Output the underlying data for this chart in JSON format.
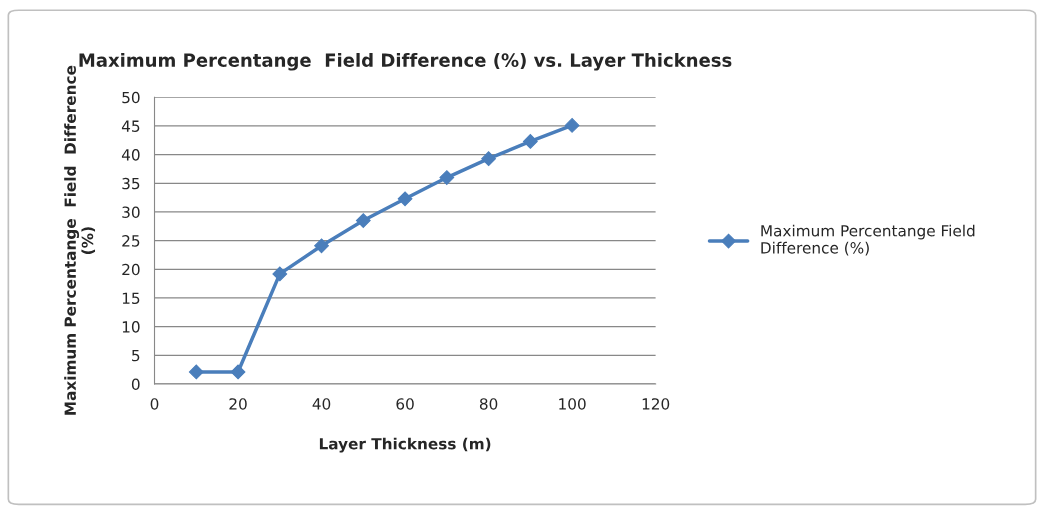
{
  "chart_data": {
    "type": "line",
    "title": "Maximum Percentange  Field Difference (%) vs. Layer Thickness",
    "xlabel": "Layer Thickness (m)",
    "ylabel": "Maximum Percentange  Field  Difference (%)",
    "x": [
      10,
      20,
      30,
      40,
      50,
      60,
      70,
      80,
      90,
      100
    ],
    "series": [
      {
        "name": "Maximum Percentange Field Difference (%)",
        "color": "#4a7ebb",
        "values": [
          2.1,
          2.1,
          19.2,
          24.1,
          28.5,
          32.3,
          36,
          39.3,
          42.3,
          45.1
        ]
      }
    ],
    "xlim": [
      0,
      120
    ],
    "xticks": [
      0,
      20,
      40,
      60,
      80,
      100,
      120
    ],
    "ylim": [
      0,
      50
    ],
    "yticks": [
      0,
      5,
      10,
      15,
      20,
      25,
      30,
      35,
      40,
      45,
      50
    ],
    "grid": "y",
    "legend": "right",
    "marker": "diamond",
    "line_style": "solid"
  }
}
